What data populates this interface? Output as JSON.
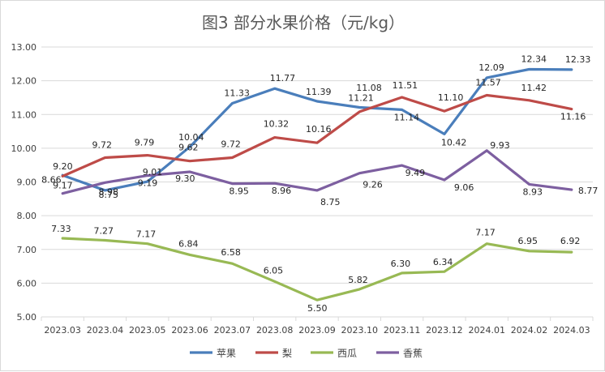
{
  "chart_data": {
    "type": "line",
    "title": "图3 部分水果价格（元/kg）",
    "xlabel": "",
    "ylabel": "",
    "ylim": [
      5.0,
      13.0
    ],
    "yticks": [
      "5.00",
      "6.00",
      "7.00",
      "8.00",
      "9.00",
      "10.00",
      "11.00",
      "12.00",
      "13.00"
    ],
    "grid": true,
    "legend_position": "bottom",
    "categories": [
      "2023.03",
      "2023.04",
      "2023.05",
      "2023.06",
      "2023.07",
      "2023.08",
      "2023.09",
      "2023.10",
      "2023.11",
      "2023.12",
      "2024.01",
      "2024.02",
      "2024.03"
    ],
    "series": [
      {
        "name": "苹果",
        "color": "#4a7ebb",
        "values": [
          9.2,
          8.75,
          9.01,
          10.04,
          11.33,
          11.77,
          11.39,
          11.21,
          11.14,
          10.42,
          12.09,
          12.34,
          12.33
        ],
        "labels": [
          "9.20",
          "8.75",
          "9.01",
          "10.04",
          "11.33",
          "11.77",
          "11.39",
          "11.21",
          "11.14",
          "10.42",
          "12.09",
          "12.34",
          "12.33"
        ]
      },
      {
        "name": "梨",
        "color": "#be4b48",
        "values": [
          9.17,
          9.72,
          9.79,
          9.62,
          9.72,
          10.32,
          10.16,
          11.08,
          11.51,
          11.1,
          11.57,
          11.42,
          11.16
        ],
        "labels": [
          "9.17",
          "9.72",
          "9.79",
          "9.62",
          "9.72",
          "10.32",
          "10.16",
          "11.08",
          "11.51",
          "11.10",
          "11.57",
          "11.42",
          "11.16"
        ]
      },
      {
        "name": "西瓜",
        "color": "#98b954",
        "values": [
          7.33,
          7.27,
          7.17,
          6.84,
          6.58,
          6.05,
          5.5,
          5.82,
          6.3,
          6.34,
          7.17,
          6.95,
          6.92
        ],
        "labels": [
          "7.33",
          "7.27",
          "7.17",
          "6.84",
          "6.58",
          "6.05",
          "5.50",
          "5.82",
          "6.30",
          "6.34",
          "7.17",
          "6.95",
          "6.92"
        ]
      },
      {
        "name": "香蕉",
        "color": "#7d5fa0",
        "values": [
          8.66,
          8.98,
          9.19,
          9.3,
          8.95,
          8.96,
          8.75,
          9.26,
          9.49,
          9.06,
          9.93,
          8.93,
          8.77
        ],
        "labels": [
          "8.66",
          "8.98",
          "9.19",
          "9.30",
          "8.95",
          "8.96",
          "8.75",
          "9.26",
          "9.49",
          "9.06",
          "9.93",
          "8.93",
          "8.77"
        ]
      }
    ]
  }
}
